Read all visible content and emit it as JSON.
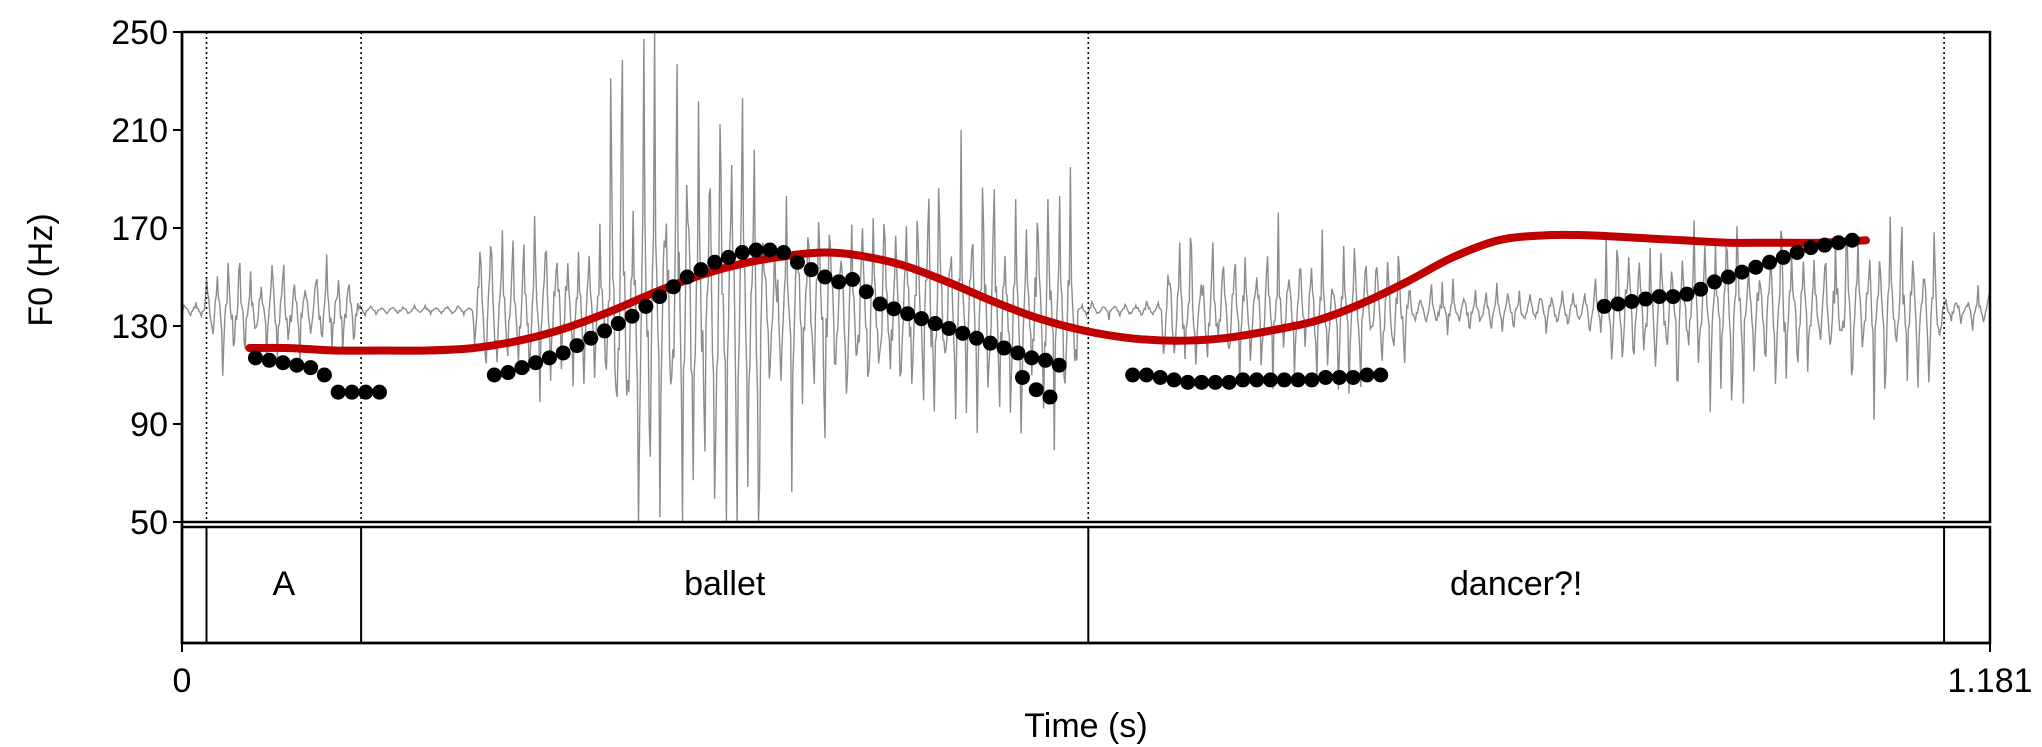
{
  "chart_data": {
    "type": "line",
    "xlabel": "Time (s)",
    "ylabel": "F0 (Hz)",
    "xlim": [
      0,
      1.181
    ],
    "ylim": [
      50,
      250
    ],
    "x_tick_labels": [
      "0",
      "1.181"
    ],
    "y_ticks": [
      50,
      90,
      130,
      170,
      210,
      250
    ],
    "y_tick_labels": [
      "50",
      "90",
      "130",
      "170",
      "210",
      "250"
    ],
    "colors": {
      "contour": "#c00000",
      "points": "#000000",
      "waveform": "#8c8c8c"
    },
    "boundaries": [
      0.016,
      0.117,
      0.592,
      1.151
    ],
    "intervals": [
      {
        "label": "A",
        "start": 0.016,
        "end": 0.117
      },
      {
        "label": "ballet",
        "start": 0.117,
        "end": 0.592
      },
      {
        "label": "dancer?!",
        "start": 0.592,
        "end": 1.151
      }
    ],
    "series": [
      {
        "kind": "f0-points",
        "segments": [
          {
            "x": [
              0.048,
              0.057,
              0.066,
              0.075,
              0.084,
              0.093,
              0.102,
              0.111,
              0.12,
              0.129
            ],
            "y": [
              117,
              116,
              115,
              114,
              113,
              110,
              103,
              103,
              103,
              103
            ]
          },
          {
            "x": [
              0.204,
              0.213,
              0.222,
              0.231,
              0.24,
              0.249,
              0.258,
              0.267,
              0.276,
              0.285,
              0.294,
              0.303,
              0.312,
              0.321,
              0.33,
              0.339,
              0.348,
              0.357,
              0.366,
              0.375,
              0.384,
              0.393,
              0.402,
              0.411,
              0.42,
              0.429,
              0.438,
              0.447,
              0.456,
              0.465,
              0.474,
              0.483,
              0.492,
              0.501,
              0.51,
              0.519,
              0.528,
              0.537,
              0.546,
              0.555,
              0.564,
              0.573
            ],
            "y": [
              110,
              111,
              113,
              115,
              117,
              119,
              122,
              125,
              128,
              131,
              134,
              138,
              142,
              146,
              150,
              153,
              156,
              158,
              160,
              161,
              161,
              160,
              156,
              153,
              150,
              148,
              149,
              144,
              139,
              137,
              135,
              133,
              131,
              129,
              127,
              125,
              123,
              121,
              119,
              117,
              116,
              114
            ]
          },
          {
            "x": [
              0.621,
              0.63,
              0.639,
              0.648,
              0.657,
              0.666,
              0.675,
              0.684,
              0.693,
              0.702,
              0.711,
              0.72,
              0.729,
              0.738,
              0.747,
              0.756,
              0.765,
              0.774,
              0.783
            ],
            "y": [
              110,
              110,
              109,
              108,
              107,
              107,
              107,
              107,
              108,
              108,
              108,
              108,
              108,
              108,
              109,
              109,
              109,
              110,
              110
            ]
          },
          {
            "x": [
              0.929,
              0.938,
              0.947,
              0.956,
              0.965,
              0.974,
              0.983,
              0.992,
              1.001,
              1.01,
              1.019,
              1.028,
              1.037,
              1.046,
              1.055,
              1.064,
              1.073,
              1.082,
              1.091
            ],
            "y": [
              138,
              139,
              140,
              141,
              142,
              142,
              143,
              145,
              148,
              150,
              152,
              154,
              156,
              158,
              160,
              162,
              163,
              164,
              165
            ]
          }
        ],
        "tail_points": {
          "x": [
            0.549,
            0.558,
            0.567
          ],
          "y": [
            109,
            104,
            101
          ]
        }
      },
      {
        "kind": "fitted-contour",
        "x": [
          0.044,
          0.07,
          0.1,
          0.13,
          0.16,
          0.19,
          0.22,
          0.25,
          0.28,
          0.31,
          0.34,
          0.37,
          0.4,
          0.42,
          0.44,
          0.47,
          0.5,
          0.53,
          0.56,
          0.59,
          0.62,
          0.65,
          0.68,
          0.71,
          0.74,
          0.77,
          0.8,
          0.83,
          0.86,
          0.89,
          0.92,
          0.95,
          0.98,
          1.01,
          1.04,
          1.07,
          1.1
        ],
        "y": [
          121,
          121,
          120,
          120,
          120,
          121,
          124,
          129,
          136,
          144,
          151,
          156,
          159,
          160,
          159,
          155,
          148,
          140,
          133,
          128,
          125,
          124,
          125,
          128,
          132,
          139,
          148,
          158,
          165,
          167,
          167,
          166,
          165,
          164,
          164,
          164,
          165
        ]
      },
      {
        "kind": "waveform",
        "segments": [
          {
            "start": 0.0,
            "end": 0.015,
            "amp": 3
          },
          {
            "start": 0.015,
            "end": 0.115,
            "amp": 18
          },
          {
            "start": 0.115,
            "end": 0.19,
            "amp": 2
          },
          {
            "start": 0.19,
            "end": 0.28,
            "amp": 30
          },
          {
            "start": 0.28,
            "end": 0.38,
            "amp": 80
          },
          {
            "start": 0.38,
            "end": 0.585,
            "amp": 45
          },
          {
            "start": 0.585,
            "end": 0.64,
            "amp": 3
          },
          {
            "start": 0.64,
            "end": 0.8,
            "amp": 25
          },
          {
            "start": 0.8,
            "end": 0.93,
            "amp": 8
          },
          {
            "start": 0.93,
            "end": 1.15,
            "amp": 28
          },
          {
            "start": 1.15,
            "end": 1.181,
            "amp": 6
          }
        ]
      }
    ]
  }
}
